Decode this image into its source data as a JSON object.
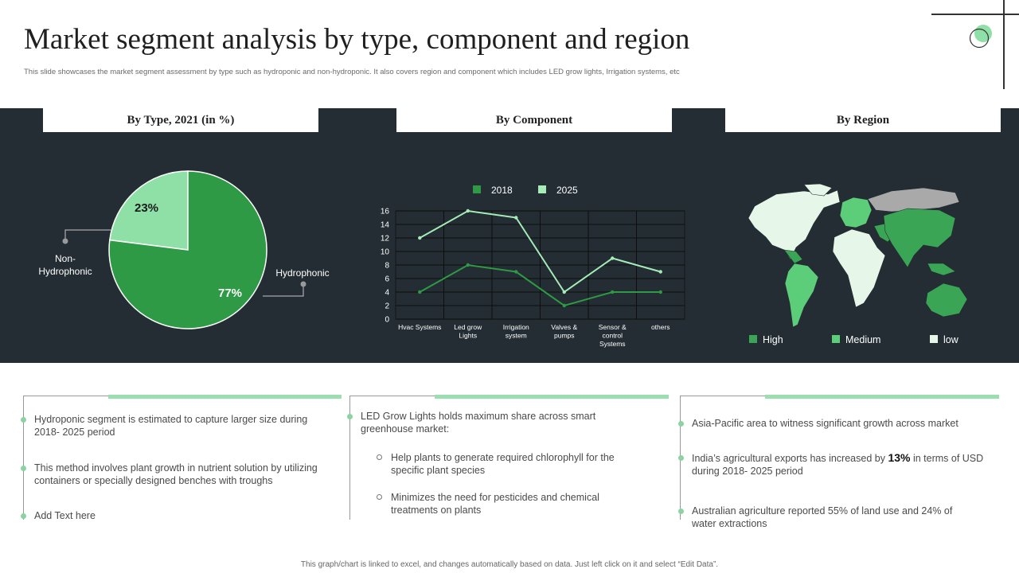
{
  "title": "Market segment analysis by type, component and region",
  "subtitle": "This slide showcases the market segment assessment by type such as hydroponic and non-hydroponic. It also covers region and component which includes LED grow lights, Irrigation systems, etc",
  "colors": {
    "panel": "#232d33",
    "dark_green": "#2e9a45",
    "light_green": "#8fe0a6",
    "high": "#3aa655",
    "medium": "#5ccd79",
    "low": "#e6f7ea",
    "accent": "#9bdfb0"
  },
  "panel_headers": {
    "type": "By Type, 2021 (in %)",
    "component": "By Component",
    "region": "By Region"
  },
  "chart_data": [
    {
      "type": "pie",
      "title": "By Type, 2021 (in %)",
      "labels": [
        "Hydrophonic",
        "Non-Hydrophonic"
      ],
      "values": [
        77,
        23
      ],
      "value_labels": [
        "77%",
        "23%"
      ],
      "colors": [
        "#2e9a45",
        "#8fe0a6"
      ]
    },
    {
      "type": "line",
      "title": "By Component",
      "categories": [
        "Hvac Systems",
        "Led grow Lights",
        "Irrigation system",
        "Valves & pumps",
        "Sensor & control Systems",
        "others"
      ],
      "category_lines": [
        [
          "Hvac Systems"
        ],
        [
          "Led grow",
          "Lights"
        ],
        [
          "Irrigation",
          "system"
        ],
        [
          "Valves &",
          "pumps"
        ],
        [
          "Sensor &",
          "control",
          "Systems"
        ],
        [
          "others"
        ]
      ],
      "series": [
        {
          "name": "2018",
          "values": [
            4,
            8,
            7,
            2,
            4,
            4
          ],
          "color": "#2e9a45"
        },
        {
          "name": "2025",
          "values": [
            12,
            16,
            15,
            4,
            9,
            7
          ],
          "color": "#a6ecb8"
        }
      ],
      "ylim": [
        0,
        16
      ],
      "yticks": [
        0,
        2,
        4,
        6,
        8,
        10,
        12,
        14,
        16
      ],
      "grid": true,
      "legend": "top"
    },
    {
      "type": "map",
      "title": "By Region",
      "legend": [
        {
          "label": "High",
          "color": "#3aa655"
        },
        {
          "label": "Medium",
          "color": "#5ccd79"
        },
        {
          "label": "low",
          "color": "#e6f7ea"
        }
      ]
    }
  ],
  "map_icon": "world-map-icon",
  "columns": [
    {
      "bullets": [
        "Hydroponic segment is estimated to capture larger size during 2018- 2025 period",
        "This method involves plant growth in nutrient solution by utilizing containers or specially designed benches with troughs",
        "Add Text here"
      ]
    },
    {
      "bullets": [
        "LED Grow Lights holds maximum share across smart greenhouse market:"
      ],
      "sub_bullets": [
        "Help plants to generate required chlorophyll for the specific plant species",
        "Minimizes the need for pesticides and chemical treatments on plants"
      ]
    },
    {
      "bullets": [
        "Asia-Pacific area to witness significant growth across market",
        "Australian agriculture reported 55% of land use and 24% of water extractions"
      ],
      "exports": {
        "before": "India’s agricultural exports has increased by ",
        "highlight": "13%",
        "after": " in terms of USD during 2018- 2025 period"
      }
    }
  ],
  "footer": "This graph/chart is linked to excel, and changes automatically based on data. Just left click on it and select “Edit Data”."
}
